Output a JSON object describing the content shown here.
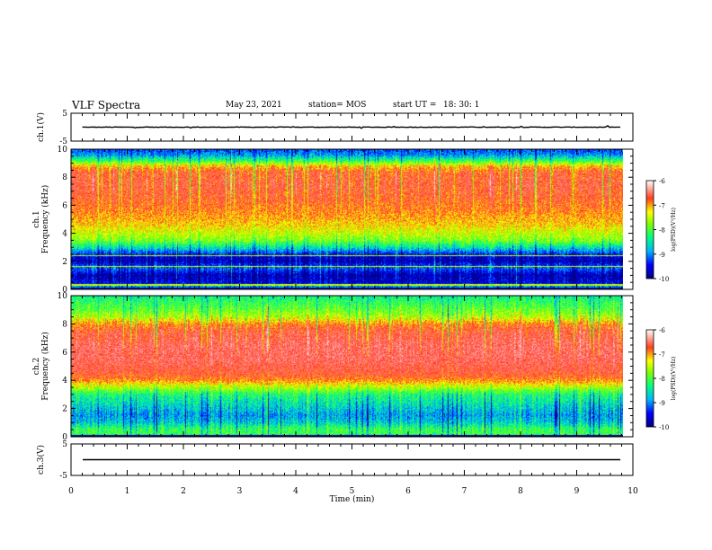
{
  "header": {
    "title": "VLF Spectra",
    "date": "May 23, 2021",
    "station": "station= MOS",
    "start_label": "start  UT  =",
    "start_time": "18: 30: 1"
  },
  "chart_data": [
    {
      "type": "line",
      "name": "ch1-waveform",
      "ylabel": "ch.1(V)",
      "ylim": [
        -5,
        5
      ],
      "yticks": [
        "5",
        "-5"
      ],
      "xlim": [
        0,
        10
      ],
      "baseline": 0
    },
    {
      "type": "heatmap",
      "name": "ch1-spectrogram",
      "ylabel": "ch.1\nFrequency (kHz)",
      "ylim": [
        0,
        10
      ],
      "yticks": [
        "0",
        "2",
        "4",
        "6",
        "8",
        "10"
      ],
      "xlim": [
        0,
        9.82
      ],
      "colorbar": {
        "label": "log(PSD)(V²/Hz)",
        "range": [
          -10,
          -6
        ],
        "ticks": [
          "-6",
          "-7",
          "-8",
          "-9",
          "-10"
        ]
      },
      "profile": [
        [
          0,
          -8.6
        ],
        [
          0.4,
          -9.6
        ],
        [
          1.0,
          -9.8
        ],
        [
          1.5,
          -9.2
        ],
        [
          2.0,
          -9.8
        ],
        [
          2.4,
          -9.6
        ],
        [
          3.0,
          -8.6
        ],
        [
          3.5,
          -8.0
        ],
        [
          4.5,
          -7.5
        ],
        [
          5.5,
          -7.2
        ],
        [
          6.5,
          -7.0
        ],
        [
          7.5,
          -6.9
        ],
        [
          8.4,
          -7.0
        ],
        [
          8.8,
          -7.4
        ],
        [
          9.2,
          -8.3
        ],
        [
          9.6,
          -9.0
        ],
        [
          10.0,
          -9.3
        ]
      ]
    },
    {
      "type": "heatmap",
      "name": "ch2-spectrogram",
      "ylabel": "ch.2\nFrequency (kHz)",
      "ylim": [
        0,
        10
      ],
      "yticks": [
        "0",
        "2",
        "4",
        "6",
        "8",
        "10"
      ],
      "xlim": [
        0,
        9.82
      ],
      "colorbar": {
        "label": "log(PSD)(V²/Hz)",
        "range": [
          -10,
          -6
        ],
        "ticks": [
          "-6",
          "-7",
          "-8",
          "-9",
          "-10"
        ]
      },
      "profile": [
        [
          0,
          -8.3
        ],
        [
          0.5,
          -8.3
        ],
        [
          1.0,
          -8.8
        ],
        [
          1.5,
          -9.0
        ],
        [
          2.0,
          -8.8
        ],
        [
          2.5,
          -8.6
        ],
        [
          3.0,
          -8.4
        ],
        [
          3.5,
          -7.8
        ],
        [
          4.0,
          -7.2
        ],
        [
          4.5,
          -6.9
        ],
        [
          5.5,
          -6.7
        ],
        [
          6.5,
          -6.7
        ],
        [
          7.5,
          -6.9
        ],
        [
          8.0,
          -7.2
        ],
        [
          8.5,
          -7.8
        ],
        [
          9.0,
          -8.1
        ],
        [
          9.5,
          -8.3
        ],
        [
          10.0,
          -8.5
        ]
      ]
    },
    {
      "type": "line",
      "name": "ch3-waveform",
      "ylabel": "ch.3(V)",
      "ylim": [
        -5,
        5
      ],
      "yticks": [
        "5",
        "-5"
      ],
      "xlim": [
        0,
        10
      ],
      "baseline": 0,
      "xlabel": "Time  (min)",
      "xticks": [
        "0",
        "1",
        "2",
        "3",
        "4",
        "5",
        "6",
        "7",
        "8",
        "9",
        "10"
      ]
    }
  ]
}
